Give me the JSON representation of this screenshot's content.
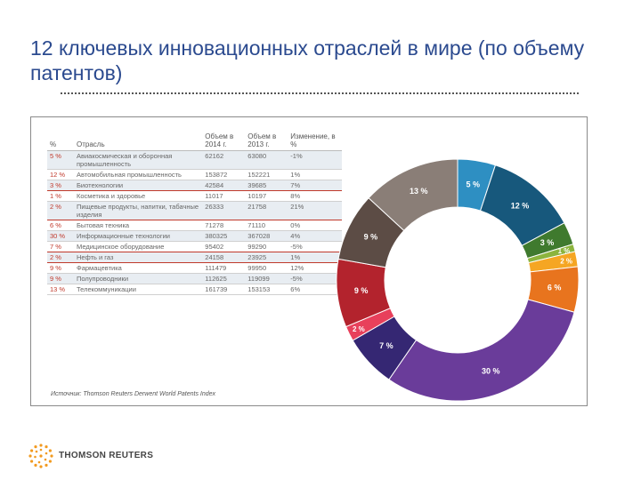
{
  "title": "12 ключевых инновационных отраслей в мире (по объему патентов)",
  "table": {
    "headers": [
      "%",
      "Отрасль",
      "Объем в 2014 г.",
      "Объем в 2013 г.",
      "Изменение, в %"
    ],
    "rows": [
      {
        "pct": "5 %",
        "name": "Авиакосмическая и оборонная промышленность",
        "v2014": "62162",
        "v2013": "63080",
        "change": "-1%"
      },
      {
        "pct": "12 %",
        "name": "Автомобильная промышленность",
        "v2014": "153872",
        "v2013": "152221",
        "change": "1%"
      },
      {
        "pct": "3 %",
        "name": "Биотехнологии",
        "v2014": "42584",
        "v2013": "39685",
        "change": "7%"
      },
      {
        "pct": "1 %",
        "name": "Косметика и здоровье",
        "v2014": "11017",
        "v2013": "10197",
        "change": "8%"
      },
      {
        "pct": "2 %",
        "name": "Пищевые продукты, напитки, табачные изделия",
        "v2014": "26333",
        "v2013": "21758",
        "change": "21%"
      },
      {
        "pct": "6 %",
        "name": "Бытовая техника",
        "v2014": "71278",
        "v2013": "71110",
        "change": "0%"
      },
      {
        "pct": "30 %",
        "name": "Информационные технологии",
        "v2014": "380325",
        "v2013": "367028",
        "change": "4%"
      },
      {
        "pct": "7 %",
        "name": "Медицинское оборудование",
        "v2014": "95402",
        "v2013": "99290",
        "change": "-5%"
      },
      {
        "pct": "2 %",
        "name": "Нефть и газ",
        "v2014": "24158",
        "v2013": "23925",
        "change": "1%"
      },
      {
        "pct": "9 %",
        "name": "Фармацевтика",
        "v2014": "111479",
        "v2013": "99950",
        "change": "12%"
      },
      {
        "pct": "9 %",
        "name": "Полупроводники",
        "v2014": "112625",
        "v2013": "119099",
        "change": "-5%"
      },
      {
        "pct": "13 %",
        "name": "Телекоммуникации",
        "v2014": "161739",
        "v2013": "153153",
        "change": "6%"
      }
    ]
  },
  "source": "Источник: Thomson Reuters Derwent World Patents Index",
  "logo_text": "THOMSON REUTERS",
  "chart_data": {
    "type": "pie",
    "donut": true,
    "slices": [
      {
        "label": "5 %",
        "value": 5,
        "color": "#2e8fc2"
      },
      {
        "label": "12 %",
        "value": 12,
        "color": "#17587c"
      },
      {
        "label": "3 %",
        "value": 3,
        "color": "#3f7a2e"
      },
      {
        "label": "1 %",
        "value": 1,
        "color": "#8cb43d"
      },
      {
        "label": "2 %",
        "value": 2,
        "color": "#f5a623"
      },
      {
        "label": "6 %",
        "value": 6,
        "color": "#e8741e"
      },
      {
        "label": "30 %",
        "value": 30,
        "color": "#6a3c9a"
      },
      {
        "label": "7 %",
        "value": 7,
        "color": "#352773"
      },
      {
        "label": "2 %",
        "value": 2,
        "color": "#e8405b"
      },
      {
        "label": "9 %",
        "value": 9,
        "color": "#b3232d"
      },
      {
        "label": "9 %",
        "value": 9,
        "color": "#5c4c45"
      },
      {
        "label": "13 %",
        "value": 13,
        "color": "#8a7e77"
      }
    ]
  }
}
